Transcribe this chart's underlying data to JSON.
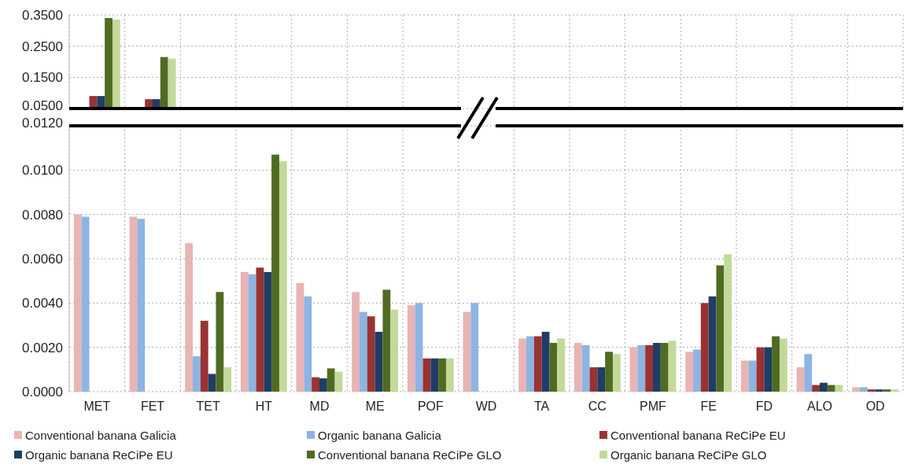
{
  "chart_data": [
    {
      "type": "bar",
      "tick_labels": "y",
      "grid": true,
      "ylim": [
        0.05,
        0.35
      ],
      "yticks": [
        {
          "value": 0.05,
          "label": "0.0500"
        },
        {
          "value": 0.15,
          "label": "0.1500"
        },
        {
          "value": 0.25,
          "label": "0.2500"
        },
        {
          "value": 0.35,
          "label": "0.3500"
        }
      ],
      "series": [
        {
          "color": "#9b3232",
          "values": [
            0.09,
            0.08,
            null,
            null,
            null,
            null,
            null,
            null,
            null,
            null,
            null,
            null,
            null,
            null,
            null
          ]
        },
        {
          "color": "#1f3d66",
          "values": [
            0.09,
            0.08,
            null,
            null,
            null,
            null,
            null,
            null,
            null,
            null,
            null,
            null,
            null,
            null,
            null
          ]
        },
        {
          "color": "#4f6b22",
          "values": [
            0.34,
            0.215,
            null,
            null,
            null,
            null,
            null,
            null,
            null,
            null,
            null,
            null,
            null,
            null,
            null
          ]
        },
        {
          "color": "#c3d99a",
          "values": [
            0.335,
            0.21,
            null,
            null,
            null,
            null,
            null,
            null,
            null,
            null,
            null,
            null,
            null,
            null,
            null
          ]
        }
      ]
    },
    {
      "type": "bar",
      "categories": [
        "MET",
        "FET",
        "TET",
        "HT",
        "MD",
        "ME",
        "POF",
        "WD",
        "TA",
        "CC",
        "PMF",
        "FE",
        "FD",
        "ALO",
        "OD"
      ],
      "grid": true,
      "legend": "bottom",
      "ylim": [
        0,
        0.012
      ],
      "yticks": [
        {
          "value": 0,
          "label": "0.0000"
        },
        {
          "value": 0.002,
          "label": "0.0020"
        },
        {
          "value": 0.004,
          "label": "0.0040"
        },
        {
          "value": 0.006,
          "label": "0.0060"
        },
        {
          "value": 0.008,
          "label": "0.0080"
        },
        {
          "value": 0.01,
          "label": "0.0100"
        },
        {
          "value": 0.012,
          "label": "0.0120"
        }
      ],
      "series": [
        {
          "name": "Conventional banana Galicia",
          "color": "#e8b4b4",
          "values": [
            0.008,
            0.0079,
            0.0067,
            0.0054,
            0.0049,
            0.0045,
            0.0039,
            0.0036,
            0.0024,
            0.0022,
            0.002,
            0.0018,
            0.0014,
            0.0011,
            0.0002
          ]
        },
        {
          "name": "Organic banana Galicia",
          "color": "#8db4e2",
          "values": [
            0.0079,
            0.0078,
            0.0016,
            0.0053,
            0.0043,
            0.0036,
            0.004,
            0.004,
            0.0025,
            0.0021,
            0.0021,
            0.0019,
            0.0014,
            0.0017,
            0.0002
          ]
        },
        {
          "name": "Conventional banana ReCiPe EU",
          "color": "#9b3232",
          "values": [
            null,
            null,
            0.0032,
            0.0056,
            0.00065,
            0.0034,
            0.0015,
            null,
            0.0025,
            0.0011,
            0.0021,
            0.004,
            0.002,
            0.0003,
            0.0001
          ]
        },
        {
          "name": "Organic banana ReCiPe EU",
          "color": "#1f3d66",
          "values": [
            null,
            null,
            0.0008,
            0.0054,
            0.0006,
            0.0027,
            0.0015,
            null,
            0.0027,
            0.0011,
            0.0022,
            0.0043,
            0.002,
            0.0004,
            0.0001
          ]
        },
        {
          "name": "Conventional banana ReCiPe GLO",
          "color": "#4f6b22",
          "values": [
            null,
            null,
            0.0045,
            0.0107,
            0.00105,
            0.0046,
            0.0015,
            null,
            0.0022,
            0.0018,
            0.0022,
            0.0057,
            0.0025,
            0.0003,
            0.0001
          ]
        },
        {
          "name": "Organic banana ReCiPe GLO",
          "color": "#c3d99a",
          "values": [
            null,
            null,
            0.0011,
            0.0104,
            0.0009,
            0.0037,
            0.0015,
            null,
            0.0024,
            0.0017,
            0.0023,
            0.0062,
            0.0024,
            0.0003,
            0.0001
          ]
        }
      ]
    }
  ]
}
